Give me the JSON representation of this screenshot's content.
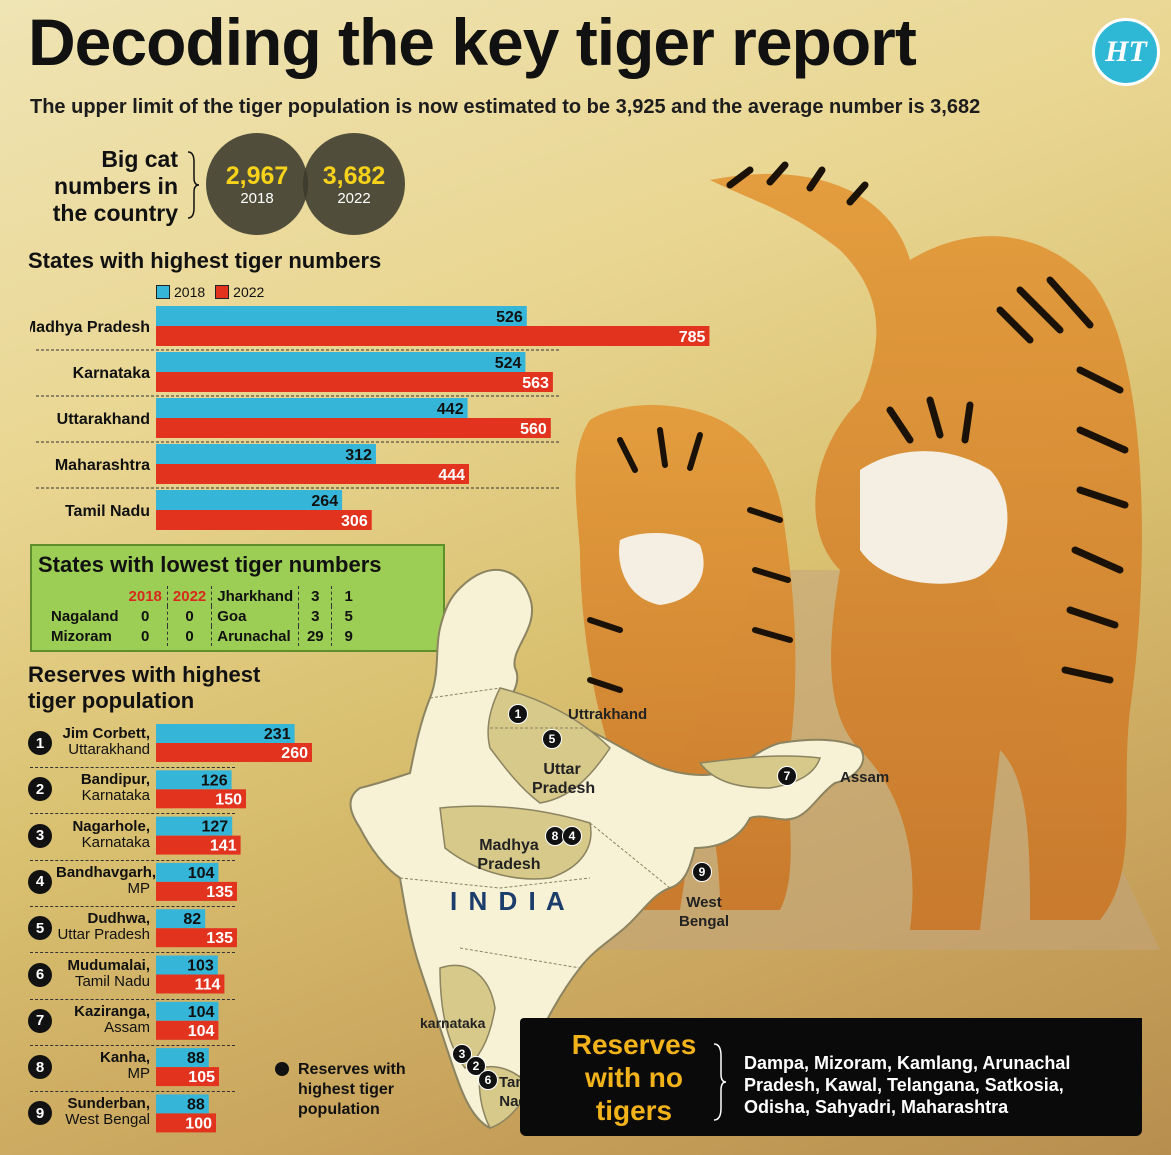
{
  "title": "Decoding the key tiger report",
  "subtitle": "The upper limit of the tiger population is now estimated to be 3,925 and the average number is 3,682",
  "logo": "HT",
  "big_cat": {
    "label": "Big cat numbers in the country",
    "items": [
      {
        "value": "2,967",
        "year": "2018"
      },
      {
        "value": "3,682",
        "year": "2022"
      }
    ]
  },
  "colors": {
    "y2018": "#35b6d9",
    "y2022": "#e2331f"
  },
  "legend": {
    "y2018": "2018",
    "y2022": "2022"
  },
  "chart_data": [
    {
      "type": "bar",
      "title": "States with highest tiger numbers",
      "categories": [
        "Madhya Pradesh",
        "Karnataka",
        "Uttarakhand",
        "Maharashtra",
        "Tamil Nadu"
      ],
      "series": [
        {
          "name": "2018",
          "values": [
            526,
            524,
            442,
            312,
            264
          ]
        },
        {
          "name": "2022",
          "values": [
            785,
            563,
            560,
            444,
            306
          ]
        }
      ]
    },
    {
      "type": "table",
      "title": "States with lowest tiger numbers",
      "columns": [
        "",
        "2018",
        "2022",
        "",
        "",
        ""
      ],
      "rows": [
        [
          "Nagaland",
          "0",
          "0",
          "Jharkhand",
          "3",
          "1"
        ],
        [
          "Mizoram",
          "0",
          "0",
          "Goa",
          "3",
          "5"
        ],
        [
          "",
          "",
          "",
          "Arunachal",
          "29",
          "9"
        ]
      ]
    },
    {
      "type": "bar",
      "title": "Reserves with highest tiger population",
      "categories": [
        {
          "num": "1",
          "name": "Jim Corbett,",
          "state": "Uttarakhand"
        },
        {
          "num": "2",
          "name": "Bandipur,",
          "state": "Karnataka"
        },
        {
          "num": "3",
          "name": "Nagarhole,",
          "state": "Karnataka"
        },
        {
          "num": "4",
          "name": "Bandhavgarh,",
          "state": "MP"
        },
        {
          "num": "5",
          "name": "Dudhwa,",
          "state": "Uttar Pradesh"
        },
        {
          "num": "6",
          "name": "Mudumalai,",
          "state": "Tamil Nadu"
        },
        {
          "num": "7",
          "name": "Kaziranga,",
          "state": "Assam"
        },
        {
          "num": "8",
          "name": "Kanha,",
          "state": "MP"
        },
        {
          "num": "9",
          "name": "Sunderban,",
          "state": "West Bengal"
        }
      ],
      "series": [
        {
          "name": "2018",
          "values": [
            231,
            126,
            127,
            104,
            82,
            103,
            104,
            88,
            88
          ]
        },
        {
          "name": "2022",
          "values": [
            260,
            150,
            141,
            135,
            135,
            114,
            104,
            105,
            100
          ]
        }
      ]
    }
  ],
  "map": {
    "country": "I N D I A",
    "labels": {
      "uttarakhand": "Uttrakhand",
      "uttar_pradesh": "Uttar Pradesh",
      "madhya_pradesh": "Madhya Pradesh",
      "assam": "Assam",
      "west_bengal": "West Bengal",
      "karnataka": "karnataka",
      "tamil_nadu": "Tamil Nadu"
    },
    "legend": "Reserves with highest tiger population"
  },
  "no_reserves": {
    "title": "Reserves with no tigers",
    "text": "Dampa, Mizoram, Kamlang, Arunachal Pradesh, Kawal, Telangana, Satkosia, Odisha, Sahyadri, Maharashtra"
  }
}
